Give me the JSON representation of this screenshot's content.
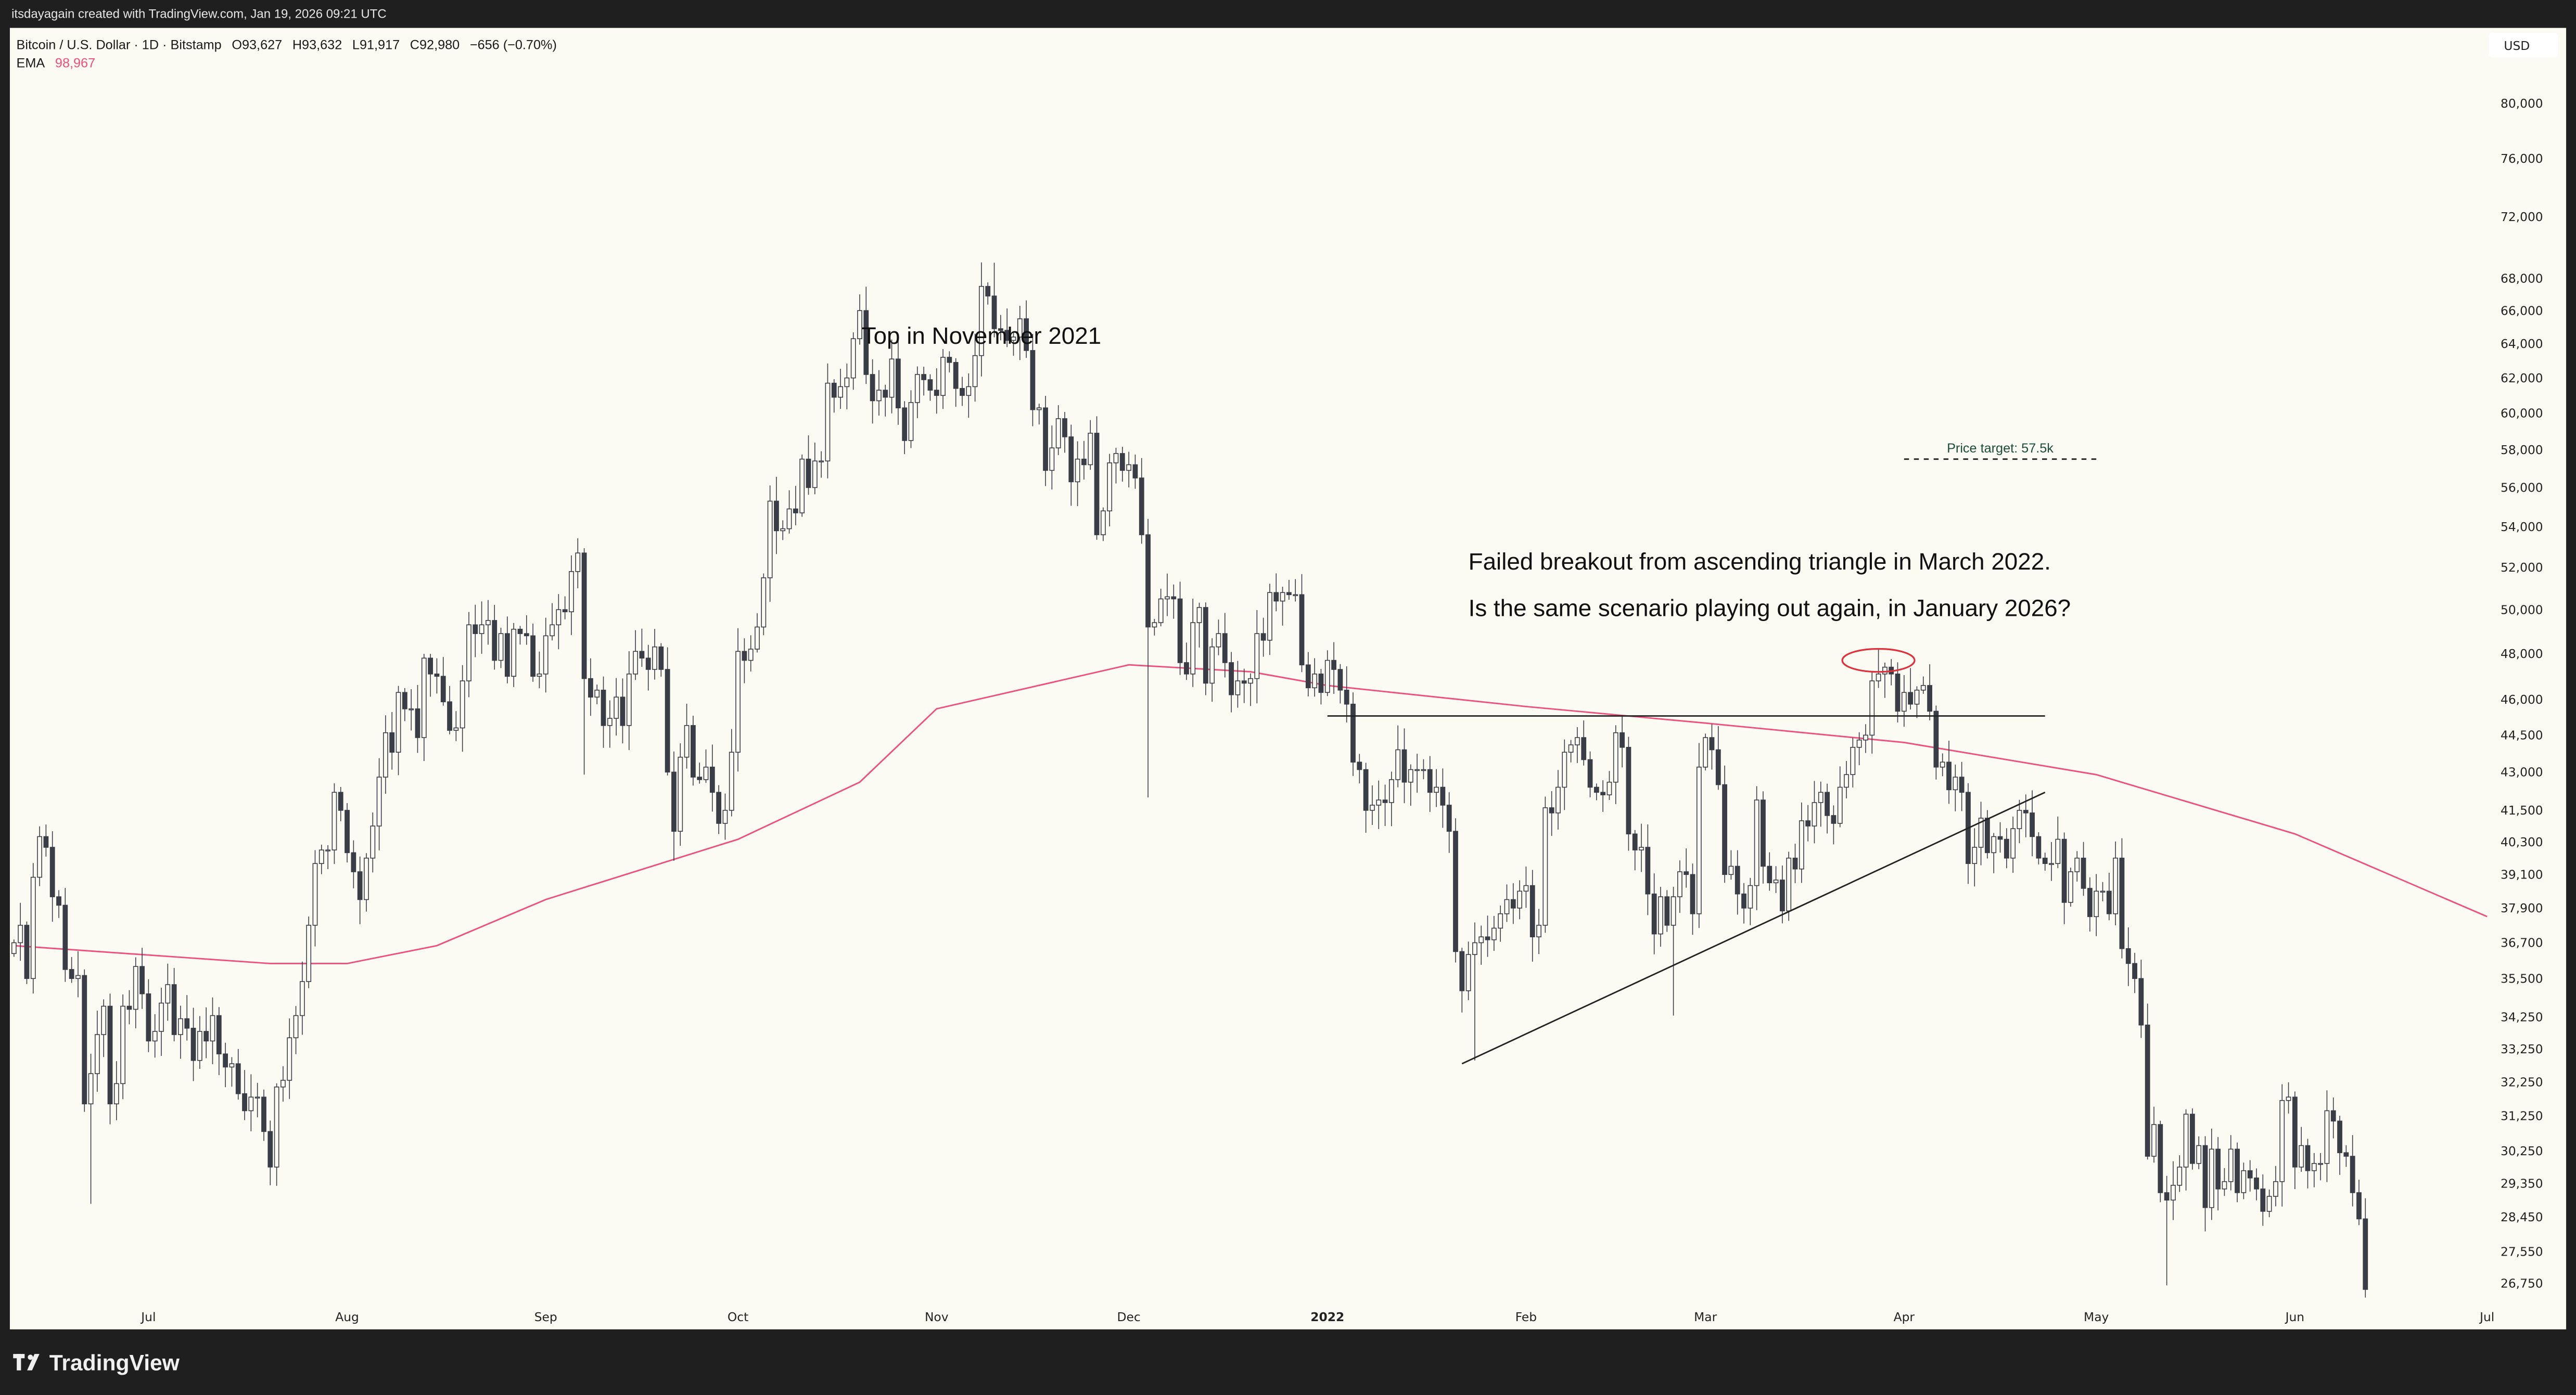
{
  "header": {
    "credit": "itsdayagain created with TradingView.com, Jan 19, 2026 09:21 UTC",
    "symbol": "Bitcoin / U.S. Dollar · 1D · Bitstamp",
    "open": "O93,627",
    "high": "H93,632",
    "low": "L91,917",
    "close": "C92,980",
    "change": "−656 (−0.70%)",
    "ema_label": "EMA",
    "ema_value": "98,967"
  },
  "footer": {
    "logo_text": "TradingView",
    "logo_icon": "tradingview-logo-icon"
  },
  "colors": {
    "background": "#fbfaf3",
    "frame": "#1f1f1f",
    "candle_down": "#3a3c46",
    "candle_up_border": "#3a3c46",
    "ema": "#ef4f7d",
    "price_target_text": "#1b4d3e",
    "ellipse": "#e0303a"
  },
  "chart_data": {
    "type": "candlestick",
    "title": "",
    "y_scale": "log",
    "currency_label": "USD",
    "ylim": [
      25500,
      86000
    ],
    "y_ticks": [
      "80,000",
      "76,000",
      "72,000",
      "68,000",
      "66,000",
      "64,000",
      "62,000",
      "60,000",
      "58,000",
      "56,000",
      "54,000",
      "52,000",
      "50,000",
      "48,000",
      "46,000",
      "44,500",
      "43,000",
      "41,500",
      "40,300",
      "39,100",
      "37,900",
      "36,700",
      "35,500",
      "34,250",
      "33,250",
      "32,250",
      "31,250",
      "30,250",
      "29,350",
      "28,450",
      "27,550",
      "26,750"
    ],
    "x_ticks": [
      {
        "label": "Jul",
        "date": "2021-07-01"
      },
      {
        "label": "Aug",
        "date": "2021-08-01"
      },
      {
        "label": "Sep",
        "date": "2021-09-01"
      },
      {
        "label": "Oct",
        "date": "2021-10-01"
      },
      {
        "label": "Nov",
        "date": "2021-11-01"
      },
      {
        "label": "Dec",
        "date": "2021-12-01"
      },
      {
        "label": "2022",
        "date": "2022-01-01",
        "bold": true
      },
      {
        "label": "Feb",
        "date": "2022-02-01"
      },
      {
        "label": "Mar",
        "date": "2022-03-01"
      },
      {
        "label": "Apr",
        "date": "2022-04-01"
      },
      {
        "label": "May",
        "date": "2022-05-01"
      },
      {
        "label": "Jun",
        "date": "2022-06-01"
      },
      {
        "label": "Jul",
        "date": "2022-07-01"
      }
    ],
    "grid": false,
    "candle_segments": [
      {
        "start": "2021-06-10",
        "close": [
          36700,
          37300,
          35500,
          39000,
          40500,
          40100,
          38300,
          38000,
          35800,
          35500,
          35600,
          31600,
          32500,
          33700,
          34600,
          31600,
          32200,
          34600,
          34500,
          35900,
          35000
        ]
      },
      {
        "start": "2021-07-01",
        "close": [
          33500,
          33800,
          34700,
          35300,
          33700,
          34200,
          33900,
          32900,
          33800,
          33500,
          34300,
          33100,
          32700,
          32800,
          31900,
          31400,
          31800,
          31800,
          30800,
          29800,
          32100,
          32300,
          33600,
          34300,
          35400,
          37300,
          39500,
          40000,
          40000,
          42200,
          41500
        ]
      },
      {
        "start": "2021-08-01",
        "close": [
          39900,
          39200,
          38200,
          39700,
          40900,
          42800,
          44600,
          43800,
          46300,
          45600,
          45600,
          44400,
          47800,
          47100,
          47000,
          45900,
          44700,
          44800,
          46800,
          49300,
          48900,
          49300,
          49500,
          47700,
          48900,
          47000,
          49100,
          48900,
          48800,
          47000,
          47100
        ]
      },
      {
        "start": "2021-09-01",
        "close": [
          48800,
          49300,
          50000,
          49900,
          51800,
          52700,
          46900,
          46100,
          46400,
          44900,
          45200,
          46100,
          44900,
          47100,
          48100,
          47800,
          47300,
          48300,
          47300,
          43000,
          40700,
          43600,
          44900,
          42800,
          42700,
          43200,
          42200,
          41000,
          41500,
          43800
        ]
      },
      {
        "start": "2021-10-01",
        "close": [
          48100,
          47700,
          48200,
          49200,
          51500,
          55300,
          53800,
          53900,
          54900,
          54700,
          57500,
          56000,
          57400,
          57400,
          61700,
          60900,
          61500,
          62000,
          64300,
          66000,
          62200,
          60700,
          61300,
          60900,
          63100,
          60300,
          58500,
          60600,
          62200,
          61900,
          61300
        ]
      },
      {
        "start": "2021-11-01",
        "close": [
          61000,
          63200,
          62900,
          61400,
          61000,
          61500,
          63300,
          67500,
          66900,
          64900,
          64800,
          64200,
          64400,
          65500,
          63600,
          60200,
          60300,
          56900,
          58100,
          59700,
          58700,
          56300,
          57500,
          57200,
          58900,
          53600,
          54800,
          57300,
          57800,
          56900
        ]
      },
      {
        "start": "2021-12-01",
        "close": [
          57200,
          56500,
          53600,
          49200,
          49400,
          50500,
          50600,
          50500,
          47600,
          47100,
          49400,
          50100,
          46700,
          48300,
          48900,
          47600,
          46200,
          46800,
          46700,
          46900,
          48900,
          48600,
          50800,
          50400,
          50800,
          50700,
          50700,
          47500,
          46500,
          47100,
          46300
        ]
      },
      {
        "start": "2022-01-01",
        "close": [
          47700,
          47300,
          46400,
          45800,
          43400,
          43100,
          41500,
          41700,
          41900,
          41800,
          42700,
          43900,
          42600,
          43100,
          43100,
          43100,
          42200,
          42400,
          41700,
          40700,
          36400,
          35100,
          36300,
          36700,
          36900,
          36800,
          37200,
          37700,
          38200,
          37900,
          38500
        ]
      },
      {
        "start": "2022-02-01",
        "close": [
          38700,
          36900,
          37300,
          41600,
          41400,
          42400,
          43800,
          44100,
          44400,
          43500,
          42400,
          42200,
          42100,
          42600,
          44600,
          44000,
          40600,
          40000,
          40100,
          38400,
          37000,
          38300,
          37300,
          38300,
          39200,
          39100,
          37700,
          43200
        ]
      },
      {
        "start": "2022-03-01",
        "close": [
          44400,
          43900,
          42500,
          39100,
          39400,
          38400,
          37900,
          38700,
          41900,
          39400,
          38800,
          38900,
          37800,
          39700,
          39300,
          41100,
          40900,
          41800,
          42200,
          41300,
          41000,
          42400,
          42900,
          44000,
          44300,
          44500,
          46800,
          47100,
          47400,
          47100,
          45500
        ]
      },
      {
        "start": "2022-04-01",
        "close": [
          46300,
          45800,
          46400,
          46600,
          45500,
          43200,
          43400,
          42300,
          42800,
          42200,
          39500,
          40100,
          41200,
          39900,
          40500,
          40400,
          39700,
          40800,
          41500,
          41400,
          40500,
          39700,
          39500,
          39500,
          40400,
          38100,
          39200,
          39700,
          38600,
          37600
        ]
      },
      {
        "start": "2022-05-01",
        "close": [
          38500,
          38500,
          37700,
          39700,
          36500,
          36000,
          35500,
          34000,
          30100,
          31000,
          29100,
          28900,
          29300,
          29800,
          31300,
          29900,
          30400,
          28700,
          30300,
          29200,
          29400,
          30300,
          29100,
          29700,
          29500,
          29200,
          28600,
          29000,
          29400,
          31700,
          31800
        ]
      },
      {
        "start": "2022-06-01",
        "close": [
          29800,
          30400,
          29700,
          29900,
          29900,
          31400,
          31100,
          30200,
          30100,
          29100,
          28400,
          26600
        ]
      }
    ],
    "wick_extremes": [
      {
        "date": "2021-06-22",
        "low": 28800
      },
      {
        "date": "2021-07-20",
        "low": 29300
      },
      {
        "date": "2021-09-07",
        "low": 42900
      },
      {
        "date": "2021-09-21",
        "low": 39600
      },
      {
        "date": "2021-10-20",
        "high": 67000
      },
      {
        "date": "2021-11-10",
        "high": 69000
      },
      {
        "date": "2021-12-04",
        "low": 42000
      },
      {
        "date": "2022-01-24",
        "low": 32900
      },
      {
        "date": "2022-02-24",
        "low": 34300
      },
      {
        "date": "2022-03-28",
        "high": 48200
      },
      {
        "date": "2022-05-12",
        "low": 26700
      },
      {
        "date": "2022-06-12",
        "low": 26400
      }
    ],
    "ema": {
      "label": "EMA",
      "points": [
        {
          "date": "2021-06-10",
          "value": 36600
        },
        {
          "date": "2021-07-20",
          "value": 36000
        },
        {
          "date": "2021-08-01",
          "value": 36000
        },
        {
          "date": "2021-08-15",
          "value": 36600
        },
        {
          "date": "2021-09-01",
          "value": 38200
        },
        {
          "date": "2021-10-01",
          "value": 40400
        },
        {
          "date": "2021-10-20",
          "value": 42600
        },
        {
          "date": "2021-11-01",
          "value": 45600
        },
        {
          "date": "2021-12-01",
          "value": 47500
        },
        {
          "date": "2021-12-20",
          "value": 47200
        },
        {
          "date": "2022-01-01",
          "value": 46600
        },
        {
          "date": "2022-02-01",
          "value": 45700
        },
        {
          "date": "2022-03-01",
          "value": 45000
        },
        {
          "date": "2022-04-01",
          "value": 44200
        },
        {
          "date": "2022-05-01",
          "value": 42900
        },
        {
          "date": "2022-06-01",
          "value": 40600
        },
        {
          "date": "2022-07-01",
          "value": 37600
        }
      ]
    },
    "drawings": {
      "resistance_line": {
        "from": {
          "date": "2022-01-01",
          "price": 45300
        },
        "to": {
          "date": "2022-04-23",
          "price": 45300
        }
      },
      "support_trendline": {
        "from": {
          "date": "2022-01-22",
          "price": 32800
        },
        "to": {
          "date": "2022-04-23",
          "price": 42200
        }
      },
      "breakout_ellipse": {
        "date": "2022-03-28",
        "price": 47700
      },
      "price_target": {
        "label": "Price target: 57.5k",
        "price": 57500,
        "from": "2022-04-01",
        "to": "2022-05-01"
      }
    },
    "annotations": [
      {
        "text": "Top in November 2021",
        "date": "2021-11-08",
        "price": 64000
      },
      {
        "text": "Failed breakout from ascending triangle in March 2022.",
        "date": "2022-01-23",
        "price": 51900
      },
      {
        "text": "Is the same scenario playing out again, in January 2026?",
        "date": "2022-01-23",
        "price": 49700
      }
    ]
  }
}
